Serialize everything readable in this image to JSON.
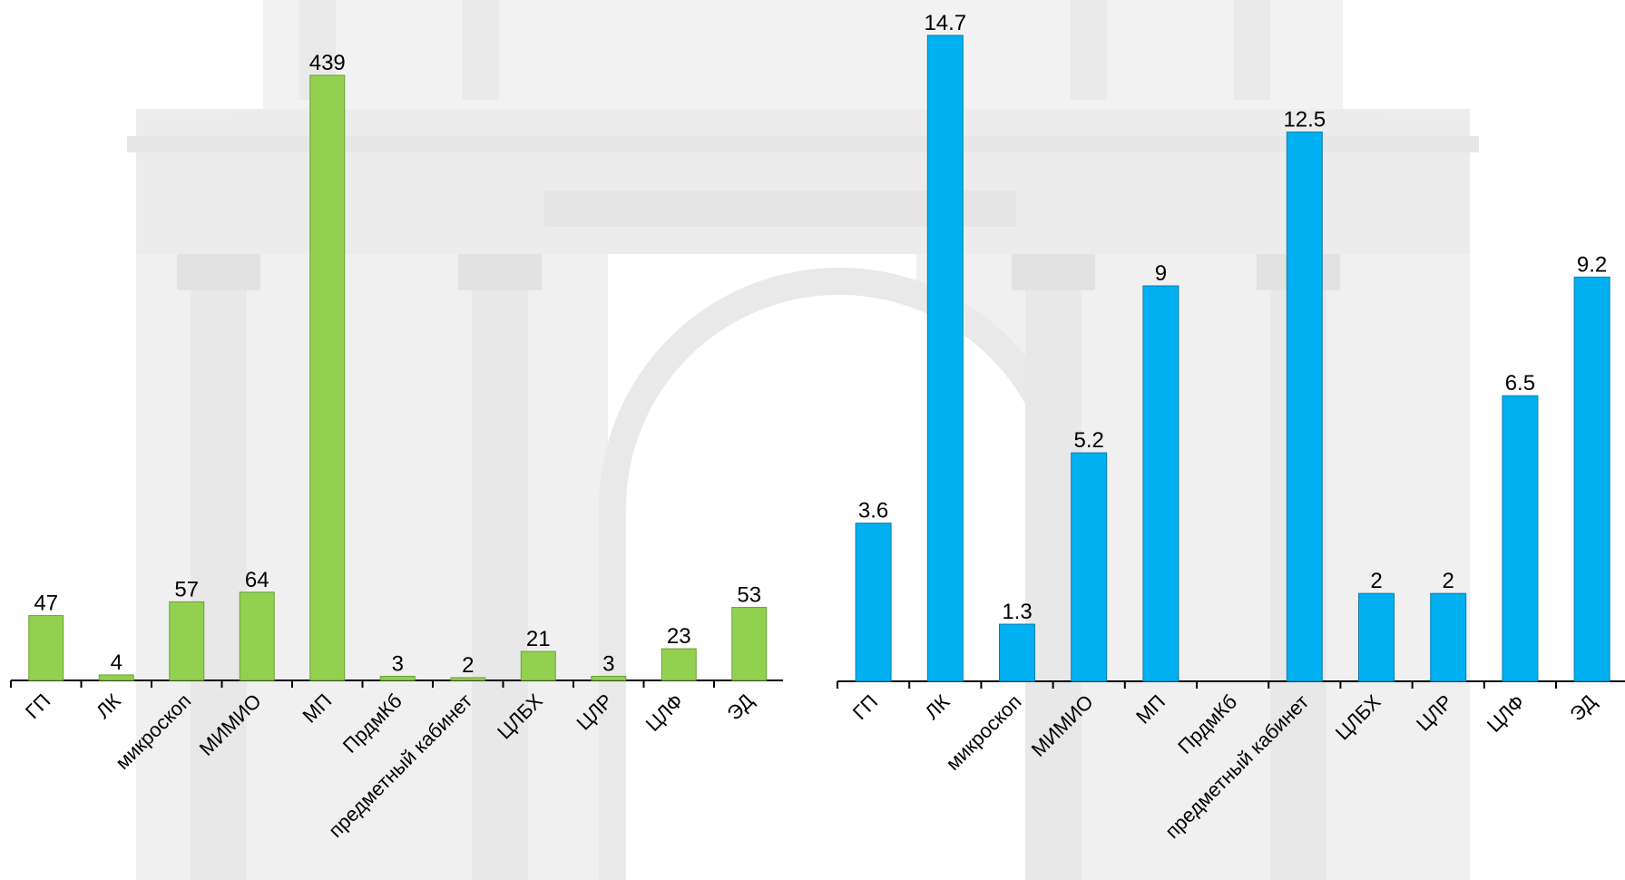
{
  "chart_data": [
    {
      "type": "bar",
      "categories": [
        "ГП",
        "ЛК",
        "микроскоп",
        "МИМИО",
        "МП",
        "ПрдмКб",
        "предметный кабинет",
        "ЦЛБХ",
        "ЦЛР",
        "ЦЛФ",
        "ЭД"
      ],
      "values": [
        47,
        4,
        57,
        64,
        439,
        3,
        2,
        21,
        3,
        23,
        53
      ],
      "data_labels": [
        "47",
        "4",
        "57",
        "64",
        "439",
        "3",
        "2",
        "21",
        "3",
        "23",
        "53"
      ],
      "title": "",
      "xlabel": "",
      "ylabel": "",
      "ylim": [
        0,
        439
      ],
      "grid": false,
      "legend": "none",
      "bar_color": "#92d050",
      "bar_stroke": "#6e9e3a"
    },
    {
      "type": "bar",
      "categories": [
        "ГП",
        "ЛК",
        "микроскоп",
        "МИМИО",
        "МП",
        "ПрдмКб",
        "предметный кабинет",
        "ЦЛБХ",
        "ЦЛР",
        "ЦЛФ",
        "ЭД"
      ],
      "values": [
        3.6,
        14.7,
        1.3,
        5.2,
        9,
        null,
        12.5,
        2,
        2,
        6.5,
        9.2
      ],
      "data_labels": [
        "3.6",
        "14.7",
        "1.3",
        "5.2",
        "9",
        "",
        "12.5",
        "2",
        "2",
        "6.5",
        "9.2"
      ],
      "title": "",
      "xlabel": "",
      "ylabel": "",
      "ylim": [
        0,
        14.7
      ],
      "grid": false,
      "legend": "none",
      "bar_color": "#00b0f0",
      "bar_stroke": "#0a7cb0"
    }
  ],
  "colors": {
    "axis": "#000000",
    "backdrop_stone": "#e2e2e2",
    "backdrop_shadow": "#cfcfcf"
  }
}
